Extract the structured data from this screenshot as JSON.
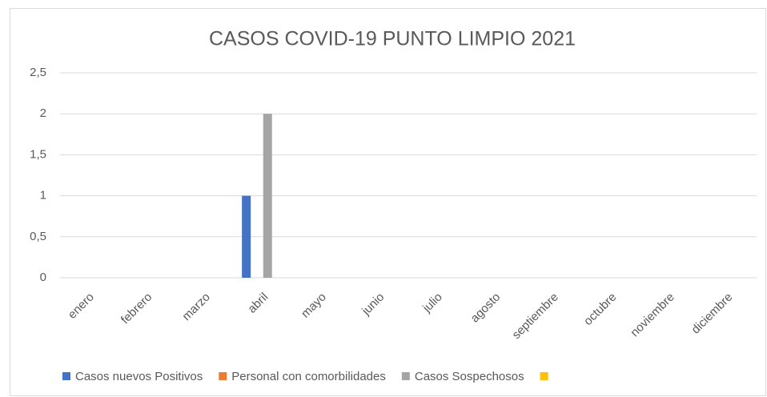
{
  "chart_data": {
    "type": "bar",
    "title": "CASOS COVID-19 PUNTO LIMPIO 2021",
    "categories": [
      "enero",
      "febrero",
      "marzo",
      "abril",
      "mayo",
      "junio",
      "julio",
      "agosto",
      "septiembre",
      "octubre",
      "noviembre",
      "diciembre"
    ],
    "series": [
      {
        "name": "Casos nuevos Positivos",
        "color": "#4472c4",
        "values": [
          0,
          0,
          0,
          1,
          0,
          0,
          0,
          0,
          0,
          0,
          0,
          0
        ]
      },
      {
        "name": "Personal con comorbilidades",
        "color": "#ed7d31",
        "values": [
          0,
          0,
          0,
          0,
          0,
          0,
          0,
          0,
          0,
          0,
          0,
          0
        ]
      },
      {
        "name": "Casos Sospechosos",
        "color": "#a5a5a5",
        "values": [
          0,
          0,
          0,
          2,
          0,
          0,
          0,
          0,
          0,
          0,
          0,
          0
        ]
      },
      {
        "name": null,
        "color": "#ffc000",
        "values": [
          0,
          0,
          0,
          0,
          0,
          0,
          0,
          0,
          0,
          0,
          0,
          0
        ]
      }
    ],
    "ylim": [
      0,
      2.5
    ],
    "yticks": [
      0,
      {
        "value": 0.5,
        "label": "0,5"
      },
      1,
      {
        "value": 1.5,
        "label": "1,5"
      },
      2,
      {
        "value": 2.5,
        "label": "2,5"
      }
    ],
    "grid": true,
    "legend": "bottom"
  }
}
